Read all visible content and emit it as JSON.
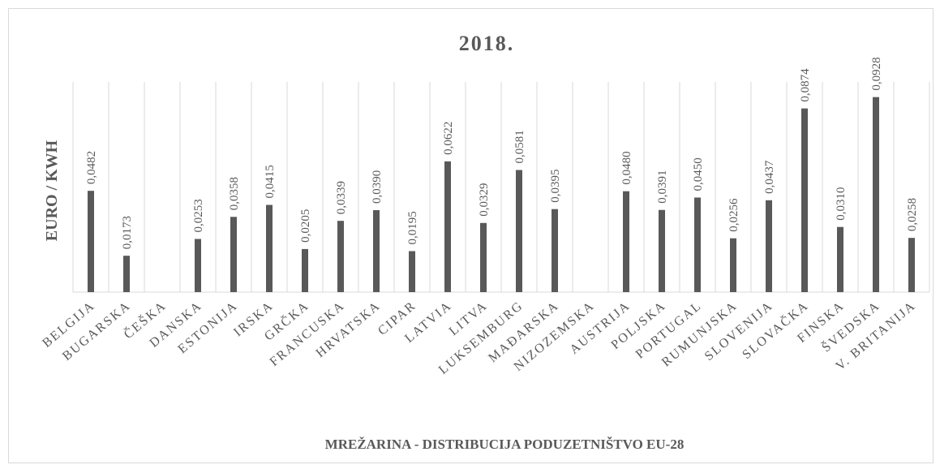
{
  "chart_data": {
    "type": "bar",
    "title": "2018.",
    "y_label": "EURO / KWH",
    "x_label": "MREŽARINA - DISTRIBUCIJA PODUZETNIŠTVO EU-28",
    "categories": [
      "BELGIJA",
      "BUGARSKA",
      "ČEŠKA",
      "DANSKA",
      "ESTONIJA",
      "IRSKA",
      "GRČKA",
      "FRANCUSKA",
      "HRVATSKA",
      "CIPAR",
      "LATVIA",
      "LITVA",
      "LUKSEMBURG",
      "MAĐARSKA",
      "NIZOZEMSKA",
      "AUSTRIJA",
      "POLJSKA",
      "PORTUGAL",
      "RUMUNJSKA",
      "SLOVENIJA",
      "SLOVAČKA",
      "FINSKA",
      "ŠVEDSKA",
      "V. BRITANIJA"
    ],
    "values": [
      0.0482,
      0.0173,
      null,
      0.0253,
      0.0358,
      0.0415,
      0.0205,
      0.0339,
      0.039,
      0.0195,
      0.0622,
      0.0329,
      0.0581,
      0.0395,
      null,
      0.048,
      0.0391,
      0.045,
      0.0256,
      0.0437,
      0.0874,
      0.031,
      0.0928,
      0.0258
    ],
    "value_labels": [
      "0,0482",
      "0,0173",
      null,
      "0,0253",
      "0,0358",
      "0,0415",
      "0,0205",
      "0,0339",
      "0,0390",
      "0,0195",
      "0,0622",
      "0,0329",
      "0,0581",
      "0,0395",
      null,
      "0,0480",
      "0,0391",
      "0,0450",
      "0,0256",
      "0,0437",
      "0,0874",
      "0,0310",
      "0,0928",
      "0,0258"
    ],
    "color": "#595959",
    "ylim": [
      0,
      0.1
    ]
  }
}
